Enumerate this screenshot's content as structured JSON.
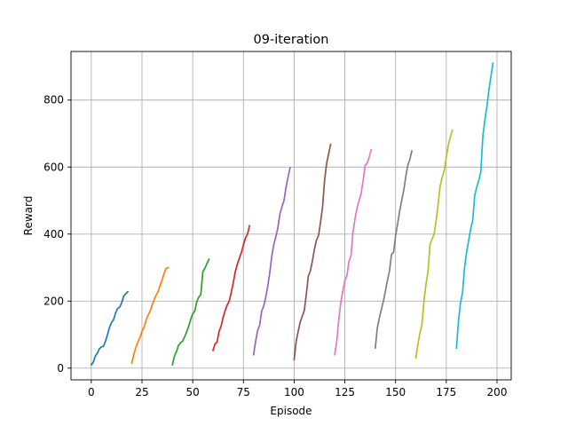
{
  "chart_data": {
    "type": "line",
    "title": "09-iteration",
    "xlabel": "Episode",
    "ylabel": "Reward",
    "xlim": [
      -10,
      207
    ],
    "ylim": [
      -35,
      945
    ],
    "xticks": [
      0,
      25,
      50,
      75,
      100,
      125,
      150,
      175,
      200
    ],
    "yticks": [
      0,
      200,
      400,
      600,
      800
    ],
    "grid": true,
    "legend": "none",
    "series": [
      {
        "color": "#1f77b4",
        "x": [
          0,
          1,
          2,
          3,
          4,
          5,
          6,
          7,
          8,
          9,
          10,
          11,
          12,
          13,
          14,
          15,
          16,
          17,
          18
        ],
        "y": [
          10,
          18,
          36,
          45,
          58,
          63,
          65,
          80,
          100,
          122,
          136,
          145,
          165,
          178,
          182,
          195,
          215,
          222,
          228
        ]
      },
      {
        "color": "#ff7f0e",
        "x": [
          20,
          21,
          22,
          23,
          24,
          25,
          26,
          27,
          28,
          29,
          30,
          31,
          32,
          33,
          34,
          35,
          36,
          37,
          38
        ],
        "y": [
          15,
          42,
          62,
          78,
          92,
          110,
          122,
          143,
          158,
          170,
          188,
          205,
          218,
          230,
          248,
          265,
          285,
          298,
          300
        ]
      },
      {
        "color": "#2ca02c",
        "x": [
          40,
          41,
          42,
          43,
          44,
          45,
          46,
          47,
          48,
          49,
          50,
          51,
          52,
          53,
          54,
          55,
          56,
          57,
          58
        ],
        "y": [
          10,
          36,
          50,
          68,
          76,
          80,
          93,
          108,
          125,
          145,
          162,
          170,
          198,
          212,
          220,
          288,
          298,
          312,
          325
        ]
      },
      {
        "color": "#d62728",
        "x": [
          60,
          61,
          62,
          63,
          64,
          65,
          66,
          67,
          68,
          69,
          70,
          71,
          72,
          73,
          74,
          75,
          76,
          77,
          78
        ],
        "y": [
          53,
          72,
          78,
          110,
          125,
          152,
          172,
          188,
          200,
          226,
          255,
          288,
          310,
          328,
          345,
          368,
          388,
          400,
          425
        ]
      },
      {
        "color": "#9467bd",
        "x": [
          80,
          81,
          82,
          83,
          84,
          85,
          86,
          87,
          88,
          89,
          90,
          91,
          92,
          93,
          94,
          95,
          96,
          97,
          98
        ],
        "y": [
          40,
          80,
          112,
          128,
          170,
          185,
          212,
          245,
          285,
          335,
          370,
          392,
          420,
          460,
          482,
          500,
          540,
          570,
          598
        ]
      },
      {
        "color": "#8c564b",
        "x": [
          100,
          101,
          102,
          103,
          104,
          105,
          106,
          107,
          108,
          109,
          110,
          111,
          112,
          113,
          114,
          115,
          116,
          117,
          118
        ],
        "y": [
          25,
          80,
          110,
          138,
          155,
          172,
          220,
          275,
          290,
          320,
          355,
          382,
          395,
          435,
          480,
          560,
          610,
          640,
          668
        ]
      },
      {
        "color": "#e377c2",
        "x": [
          120,
          121,
          122,
          123,
          124,
          125,
          126,
          127,
          128,
          129,
          130,
          131,
          132,
          133,
          134,
          135,
          136,
          137,
          138
        ],
        "y": [
          40,
          80,
          145,
          195,
          230,
          262,
          275,
          318,
          335,
          405,
          445,
          478,
          500,
          520,
          560,
          605,
          612,
          630,
          652
        ]
      },
      {
        "color": "#7f7f7f",
        "x": [
          140,
          141,
          142,
          143,
          144,
          145,
          146,
          147,
          148,
          149,
          150,
          151,
          152,
          153,
          154,
          155,
          156,
          157,
          158
        ],
        "y": [
          60,
          120,
          150,
          175,
          200,
          230,
          262,
          290,
          340,
          345,
          395,
          430,
          468,
          500,
          530,
          570,
          605,
          622,
          648
        ]
      },
      {
        "color": "#bcbd22",
        "x": [
          160,
          161,
          162,
          163,
          164,
          165,
          166,
          167,
          168,
          169,
          170,
          171,
          172,
          173,
          174,
          175,
          176,
          177,
          178
        ],
        "y": [
          30,
          70,
          105,
          130,
          200,
          250,
          290,
          370,
          385,
          400,
          440,
          490,
          545,
          570,
          590,
          630,
          665,
          690,
          710
        ]
      },
      {
        "color": "#17becf",
        "x": [
          180,
          181,
          182,
          183,
          184,
          185,
          186,
          187,
          188,
          189,
          190,
          191,
          192,
          193,
          194,
          195,
          196,
          197,
          198
        ],
        "y": [
          60,
          140,
          195,
          225,
          300,
          345,
          380,
          415,
          440,
          515,
          540,
          560,
          585,
          690,
          740,
          780,
          830,
          870,
          910
        ]
      }
    ]
  }
}
